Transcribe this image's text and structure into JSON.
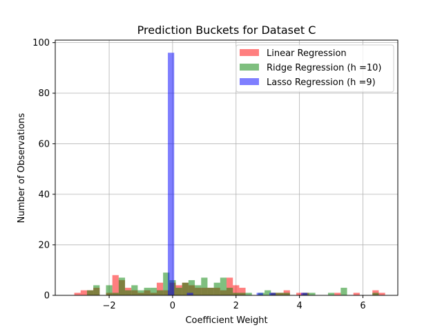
{
  "chart_data": {
    "type": "bar",
    "title": "Prediction Buckets for Dataset C",
    "xlabel": "Coefficient Weight",
    "ylabel": "Number of Observations",
    "xlim": [
      -3.7,
      7.1
    ],
    "ylim": [
      0,
      101
    ],
    "xticks": [
      -2,
      0,
      2,
      4,
      6
    ],
    "yticks": [
      0,
      20,
      40,
      60,
      80,
      100
    ],
    "xtick_labels": [
      "−2",
      "0",
      "2",
      "4",
      "6"
    ],
    "ytick_labels": [
      "0",
      "20",
      "40",
      "60",
      "80",
      "100"
    ],
    "grid": true,
    "legend_position": "upper-right",
    "series": [
      {
        "name": "Linear Regression",
        "color": "#ff0000",
        "alpha": 0.5,
        "bins": [
          {
            "x0": -3.1,
            "x1": -2.9,
            "count": 1
          },
          {
            "x0": -2.9,
            "x1": -2.7,
            "count": 2
          },
          {
            "x0": -2.7,
            "x1": -2.5,
            "count": 2
          },
          {
            "x0": -2.5,
            "x1": -2.3,
            "count": 3
          },
          {
            "x0": -2.1,
            "x1": -1.9,
            "count": 1
          },
          {
            "x0": -1.9,
            "x1": -1.7,
            "count": 8
          },
          {
            "x0": -1.7,
            "x1": -1.5,
            "count": 6
          },
          {
            "x0": -1.5,
            "x1": -1.3,
            "count": 3
          },
          {
            "x0": -1.3,
            "x1": -1.1,
            "count": 2
          },
          {
            "x0": -1.1,
            "x1": -0.9,
            "count": 1
          },
          {
            "x0": -0.9,
            "x1": -0.7,
            "count": 2
          },
          {
            "x0": -0.7,
            "x1": -0.5,
            "count": 1
          },
          {
            "x0": -0.5,
            "x1": -0.3,
            "count": 5
          },
          {
            "x0": -0.3,
            "x1": -0.1,
            "count": 2
          },
          {
            "x0": -0.1,
            "x1": 0.1,
            "count": 5
          },
          {
            "x0": 0.1,
            "x1": 0.3,
            "count": 4
          },
          {
            "x0": 0.3,
            "x1": 0.5,
            "count": 5
          },
          {
            "x0": 0.5,
            "x1": 0.7,
            "count": 4
          },
          {
            "x0": 0.7,
            "x1": 0.9,
            "count": 3
          },
          {
            "x0": 0.9,
            "x1": 1.1,
            "count": 3
          },
          {
            "x0": 1.1,
            "x1": 1.3,
            "count": 3
          },
          {
            "x0": 1.3,
            "x1": 1.5,
            "count": 3
          },
          {
            "x0": 1.5,
            "x1": 1.7,
            "count": 2
          },
          {
            "x0": 1.7,
            "x1": 1.9,
            "count": 7
          },
          {
            "x0": 1.9,
            "x1": 2.1,
            "count": 4
          },
          {
            "x0": 2.1,
            "x1": 2.3,
            "count": 3
          },
          {
            "x0": 3.1,
            "x1": 3.3,
            "count": 1
          },
          {
            "x0": 3.3,
            "x1": 3.5,
            "count": 1
          },
          {
            "x0": 3.5,
            "x1": 3.7,
            "count": 2
          },
          {
            "x0": 3.9,
            "x1": 4.1,
            "count": 1
          },
          {
            "x0": 4.1,
            "x1": 4.3,
            "count": 1
          },
          {
            "x0": 5.1,
            "x1": 5.3,
            "count": 1
          },
          {
            "x0": 5.7,
            "x1": 5.9,
            "count": 1
          },
          {
            "x0": 6.3,
            "x1": 6.5,
            "count": 2
          },
          {
            "x0": 6.5,
            "x1": 6.7,
            "count": 1
          }
        ]
      },
      {
        "name": "Ridge Regression (h =10)",
        "color": "#008000",
        "alpha": 0.5,
        "bins": [
          {
            "x0": -2.7,
            "x1": -2.5,
            "count": 2
          },
          {
            "x0": -2.5,
            "x1": -2.3,
            "count": 4
          },
          {
            "x0": -2.1,
            "x1": -1.9,
            "count": 4
          },
          {
            "x0": -1.9,
            "x1": -1.7,
            "count": 1
          },
          {
            "x0": -1.7,
            "x1": -1.5,
            "count": 7
          },
          {
            "x0": -1.5,
            "x1": -1.3,
            "count": 2
          },
          {
            "x0": -1.3,
            "x1": -1.1,
            "count": 4
          },
          {
            "x0": -1.1,
            "x1": -0.9,
            "count": 2
          },
          {
            "x0": -0.9,
            "x1": -0.7,
            "count": 3
          },
          {
            "x0": -0.7,
            "x1": -0.5,
            "count": 3
          },
          {
            "x0": -0.5,
            "x1": -0.3,
            "count": 2
          },
          {
            "x0": -0.3,
            "x1": -0.1,
            "count": 9
          },
          {
            "x0": -0.1,
            "x1": 0.1,
            "count": 6
          },
          {
            "x0": 0.1,
            "x1": 0.3,
            "count": 3
          },
          {
            "x0": 0.3,
            "x1": 0.5,
            "count": 5
          },
          {
            "x0": 0.5,
            "x1": 0.7,
            "count": 6
          },
          {
            "x0": 0.7,
            "x1": 0.9,
            "count": 4
          },
          {
            "x0": 0.9,
            "x1": 1.1,
            "count": 7
          },
          {
            "x0": 1.1,
            "x1": 1.3,
            "count": 3
          },
          {
            "x0": 1.3,
            "x1": 1.5,
            "count": 5
          },
          {
            "x0": 1.5,
            "x1": 1.7,
            "count": 7
          },
          {
            "x0": 1.7,
            "x1": 1.9,
            "count": 3
          },
          {
            "x0": 1.9,
            "x1": 2.1,
            "count": 1
          },
          {
            "x0": 2.1,
            "x1": 2.3,
            "count": 1
          },
          {
            "x0": 2.3,
            "x1": 2.5,
            "count": 1
          },
          {
            "x0": 2.7,
            "x1": 2.9,
            "count": 1
          },
          {
            "x0": 2.9,
            "x1": 3.1,
            "count": 2
          },
          {
            "x0": 3.1,
            "x1": 3.3,
            "count": 1
          },
          {
            "x0": 3.3,
            "x1": 3.5,
            "count": 1
          },
          {
            "x0": 3.5,
            "x1": 3.7,
            "count": 1
          },
          {
            "x0": 4.1,
            "x1": 4.3,
            "count": 1
          },
          {
            "x0": 4.3,
            "x1": 4.5,
            "count": 1
          },
          {
            "x0": 4.9,
            "x1": 5.1,
            "count": 1
          },
          {
            "x0": 5.3,
            "x1": 5.5,
            "count": 3
          },
          {
            "x0": 6.3,
            "x1": 6.5,
            "count": 1
          }
        ]
      },
      {
        "name": "Lasso Regression (h =9)",
        "color": "#0000ff",
        "alpha": 0.5,
        "bins": [
          {
            "x0": -0.15,
            "x1": 0.05,
            "count": 96
          },
          {
            "x0": 0.45,
            "x1": 0.65,
            "count": 1
          },
          {
            "x0": 2.65,
            "x1": 2.85,
            "count": 1
          },
          {
            "x0": 3.05,
            "x1": 3.25,
            "count": 1
          },
          {
            "x0": 4.05,
            "x1": 4.25,
            "count": 1
          }
        ]
      }
    ]
  }
}
